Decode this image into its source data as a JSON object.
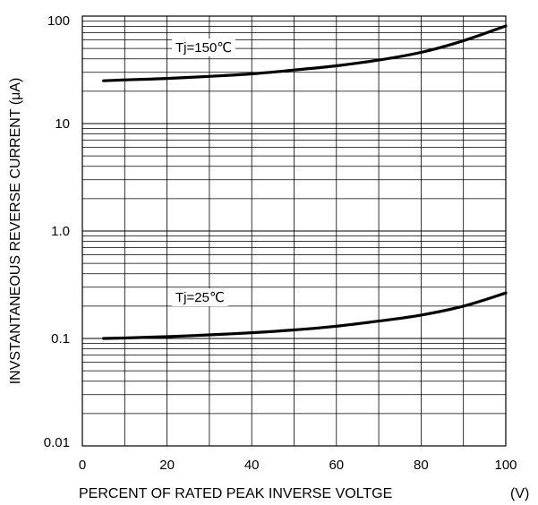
{
  "chart_data": {
    "type": "line",
    "xlabel": "PERCENT OF RATED PEAK INVERSE VOLTGE",
    "xunit": "(V)",
    "ylabel": "INVSTANTANEOUS REVERSE CURRENT (μA)",
    "xlim": [
      0,
      100
    ],
    "ylim": [
      0.01,
      100
    ],
    "yscale": "log",
    "grid": true,
    "x_ticks": [
      "0",
      "20",
      "40",
      "60",
      "80",
      "100"
    ],
    "y_ticks": [
      "0.01",
      "0.1",
      "1.0",
      "10",
      "100"
    ],
    "series": [
      {
        "name": "Tj=150℃",
        "x": [
          5,
          10,
          20,
          30,
          40,
          50,
          60,
          70,
          80,
          90,
          100
        ],
        "y": [
          25,
          25.5,
          26.3,
          27.5,
          29,
          31.5,
          34.5,
          39,
          46,
          59,
          81
        ]
      },
      {
        "name": "Tj=25℃",
        "x": [
          5,
          10,
          20,
          30,
          40,
          50,
          60,
          70,
          80,
          90,
          100
        ],
        "y": [
          0.1,
          0.101,
          0.104,
          0.108,
          0.113,
          0.12,
          0.13,
          0.145,
          0.165,
          0.2,
          0.265
        ]
      }
    ],
    "annotations": [
      "Tj=150℃",
      "Tj=25℃"
    ]
  }
}
